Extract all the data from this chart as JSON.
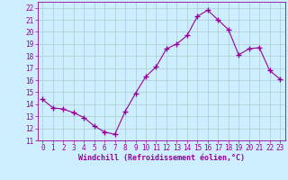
{
  "x": [
    0,
    1,
    2,
    3,
    4,
    5,
    6,
    7,
    8,
    9,
    10,
    11,
    12,
    13,
    14,
    15,
    16,
    17,
    18,
    19,
    20,
    21,
    22,
    23
  ],
  "y": [
    14.4,
    13.7,
    13.6,
    13.3,
    12.9,
    12.2,
    11.7,
    11.5,
    13.4,
    14.9,
    16.3,
    17.1,
    18.6,
    19.0,
    19.7,
    21.3,
    21.8,
    21.0,
    20.2,
    18.1,
    18.6,
    18.7,
    16.8,
    16.1
  ],
  "line_color": "#990099",
  "marker": "+",
  "marker_size": 4,
  "bg_color": "#cceeff",
  "grid_color": "#aacccc",
  "xlabel": "Windchill (Refroidissement éolien,°C)",
  "xlabel_color": "#990099",
  "tick_color": "#990099",
  "ylim": [
    11,
    22.5
  ],
  "xlim": [
    -0.5,
    23.5
  ],
  "yticks": [
    11,
    12,
    13,
    14,
    15,
    16,
    17,
    18,
    19,
    20,
    21,
    22
  ],
  "xticks": [
    0,
    1,
    2,
    3,
    4,
    5,
    6,
    7,
    8,
    9,
    10,
    11,
    12,
    13,
    14,
    15,
    16,
    17,
    18,
    19,
    20,
    21,
    22,
    23
  ]
}
